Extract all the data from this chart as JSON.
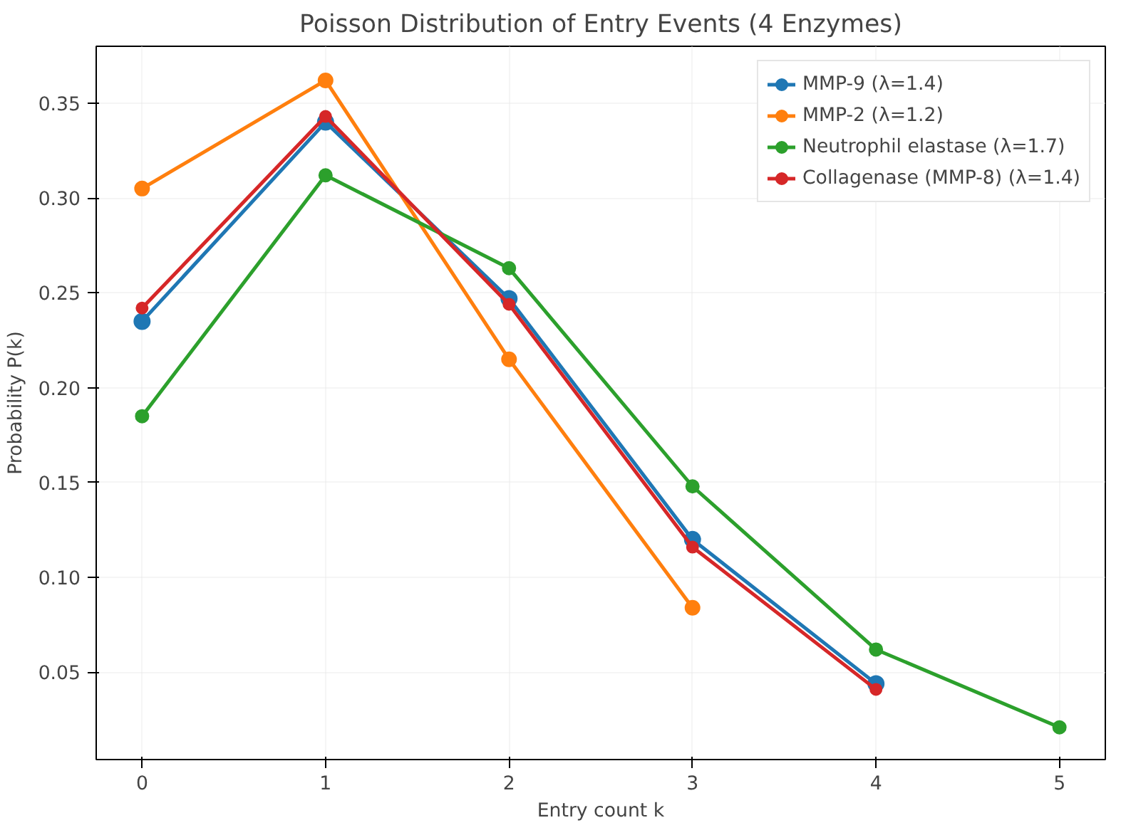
{
  "chart_data": {
    "type": "line",
    "title": "Poisson Distribution of Entry Events (4 Enzymes)",
    "xlabel": "Entry count k",
    "ylabel": "Probability P(k)",
    "x": [
      0,
      1,
      2,
      3,
      4,
      5
    ],
    "series": [
      {
        "name": "MMP-9 (λ=1.4)",
        "color": "#1f77b4",
        "values": [
          0.235,
          0.34,
          0.247,
          0.12,
          0.044,
          null
        ]
      },
      {
        "name": "MMP-2 (λ=1.2)",
        "color": "#ff7f0e",
        "values": [
          0.305,
          0.362,
          0.215,
          0.084,
          null,
          null
        ]
      },
      {
        "name": "Neutrophil elastase (λ=1.7)",
        "color": "#2ca02c",
        "values": [
          0.185,
          0.312,
          0.263,
          0.148,
          0.062,
          0.021
        ]
      },
      {
        "name": "Collagenase (MMP-8) (λ=1.4)",
        "color": "#d62728",
        "values": [
          0.242,
          0.343,
          0.244,
          0.116,
          0.041,
          null
        ]
      }
    ],
    "xlim": [
      -0.25,
      5.25
    ],
    "xticks": [
      0,
      1,
      2,
      3,
      4,
      5
    ],
    "ylim": [
      0.004,
      0.38
    ],
    "yticks": [
      {
        "value": 0.05,
        "label": "0.05"
      },
      {
        "value": 0.1,
        "label": "0.10"
      },
      {
        "value": 0.15,
        "label": "0.15"
      },
      {
        "value": 0.2,
        "label": "0.20"
      },
      {
        "value": 0.25,
        "label": "0.25"
      },
      {
        "value": 0.3,
        "label": "0.30"
      },
      {
        "value": 0.35,
        "label": "0.35"
      }
    ],
    "grid": true,
    "legend": "top right",
    "marker": "circle",
    "line_style": "solid"
  }
}
